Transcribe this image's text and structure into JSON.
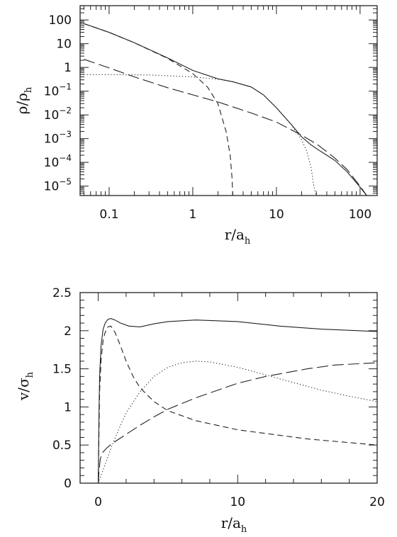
{
  "chart_data": [
    {
      "type": "line",
      "xlabel": "r/a_h",
      "ylabel": "ρ/ρ_h",
      "xlabel_main": "r/a",
      "xlabel_sub": "h",
      "ylabel_main": "ρ/ρ",
      "ylabel_sub": "h",
      "xscale": "log",
      "yscale": "log",
      "xlim": [
        0.045,
        160
      ],
      "ylim": [
        4e-06,
        400
      ],
      "grid": false,
      "x_tick_labels": [
        {
          "value": 0.1,
          "text": "0.1"
        },
        {
          "value": 1,
          "text": "1"
        },
        {
          "value": 10,
          "text": "10"
        },
        {
          "value": 100,
          "text": "100"
        }
      ],
      "y_tick_labels": [
        {
          "value": 100,
          "base": "100",
          "exp": ""
        },
        {
          "value": 10,
          "base": "10",
          "exp": ""
        },
        {
          "value": 1,
          "base": "1",
          "exp": ""
        },
        {
          "value": 0.1,
          "base": "10",
          "exp": "−1"
        },
        {
          "value": 0.01,
          "base": "10",
          "exp": "−2"
        },
        {
          "value": 0.001,
          "base": "10",
          "exp": "−3"
        },
        {
          "value": 0.0001,
          "base": "10",
          "exp": "−4"
        },
        {
          "value": 1e-05,
          "base": "10",
          "exp": "−5"
        }
      ],
      "series": [
        {
          "style": "solid",
          "x": [
            0.05,
            0.1,
            0.2,
            0.5,
            1,
            2,
            3,
            5,
            7,
            10,
            15,
            20,
            25,
            30,
            40,
            50,
            70,
            100,
            120
          ],
          "y": [
            70,
            30,
            11,
            2.5,
            0.75,
            0.33,
            0.25,
            0.15,
            0.07,
            0.02,
            0.004,
            0.0012,
            0.0006,
            0.00038,
            0.0002,
            0.00012,
            4e-05,
            9e-06,
            4e-06
          ]
        },
        {
          "style": "dashed",
          "x": [
            0.05,
            0.1,
            0.2,
            0.5,
            1,
            1.5,
            2,
            2.5,
            2.8,
            2.95,
            3.0
          ],
          "y": [
            70,
            30,
            11,
            2.4,
            0.55,
            0.15,
            0.03,
            0.002,
            0.0002,
            2e-05,
            4e-06
          ]
        },
        {
          "style": "dotted",
          "x": [
            0.05,
            0.1,
            0.3,
            1,
            2,
            3,
            5,
            7,
            10,
            15,
            20,
            23,
            26,
            28,
            29.5,
            30
          ],
          "y": [
            0.5,
            0.5,
            0.48,
            0.4,
            0.32,
            0.25,
            0.15,
            0.07,
            0.02,
            0.004,
            0.0009,
            0.0003,
            6e-05,
            1e-05,
            5e-06,
            4e-06
          ]
        },
        {
          "style": "longdash",
          "x": [
            0.05,
            0.1,
            0.2,
            0.5,
            1,
            2,
            5,
            10,
            20,
            30,
            40,
            50,
            70,
            100,
            120
          ],
          "y": [
            2.2,
            0.95,
            0.4,
            0.14,
            0.07,
            0.035,
            0.012,
            0.005,
            0.0014,
            0.0006,
            0.00028,
            0.00015,
            5e-05,
            1e-05,
            4e-06
          ]
        }
      ]
    },
    {
      "type": "line",
      "xlabel": "r/a_h",
      "ylabel": "v/σ_h",
      "xlabel_main": "r/a",
      "xlabel_sub": "h",
      "ylabel_main": "v/σ",
      "ylabel_sub": "h",
      "xlim": [
        -1.3,
        20
      ],
      "ylim": [
        0,
        2.5
      ],
      "grid": false,
      "x_tick_labels": [
        {
          "value": 0,
          "text": "0"
        },
        {
          "value": 10,
          "text": "10"
        },
        {
          "value": 20,
          "text": "20"
        }
      ],
      "y_tick_labels": [
        {
          "value": 0,
          "text": "0"
        },
        {
          "value": 0.5,
          "text": "0.5"
        },
        {
          "value": 1,
          "text": "1"
        },
        {
          "value": 1.5,
          "text": "1.5"
        },
        {
          "value": 2,
          "text": "2"
        },
        {
          "value": 2.5,
          "text": "2.5"
        }
      ],
      "series": [
        {
          "style": "solid",
          "x": [
            0,
            0.05,
            0.1,
            0.2,
            0.35,
            0.5,
            0.7,
            0.9,
            1.2,
            1.6,
            2.2,
            3,
            4,
            5,
            7,
            10,
            13,
            16,
            20
          ],
          "y": [
            0,
            0.9,
            1.4,
            1.8,
            2.02,
            2.1,
            2.15,
            2.16,
            2.14,
            2.1,
            2.06,
            2.05,
            2.09,
            2.12,
            2.14,
            2.12,
            2.06,
            2.02,
            1.99
          ]
        },
        {
          "style": "dashed",
          "x": [
            0,
            0.1,
            0.2,
            0.35,
            0.5,
            0.7,
            0.9,
            1.2,
            1.6,
            2,
            2.5,
            3,
            4,
            5,
            7,
            10,
            15,
            20
          ],
          "y": [
            0,
            1.2,
            1.6,
            1.88,
            1.98,
            2.05,
            2.06,
            1.98,
            1.8,
            1.6,
            1.4,
            1.25,
            1.07,
            0.95,
            0.82,
            0.7,
            0.58,
            0.5
          ]
        },
        {
          "style": "dotted",
          "x": [
            0,
            0.3,
            0.6,
            1,
            1.5,
            2,
            3,
            4,
            5,
            6,
            7,
            8,
            10,
            12,
            14,
            16,
            18,
            20
          ],
          "y": [
            0,
            0.15,
            0.3,
            0.5,
            0.72,
            0.92,
            1.2,
            1.4,
            1.52,
            1.58,
            1.6,
            1.59,
            1.52,
            1.42,
            1.32,
            1.22,
            1.14,
            1.07
          ]
        },
        {
          "style": "longdash",
          "x": [
            0,
            0.05,
            0.15,
            0.3,
            0.6,
            1,
            2,
            3,
            4,
            5,
            7,
            10,
            12,
            15,
            17,
            20
          ],
          "y": [
            0,
            0.15,
            0.32,
            0.4,
            0.46,
            0.52,
            0.64,
            0.76,
            0.87,
            0.97,
            1.12,
            1.31,
            1.4,
            1.5,
            1.55,
            1.58
          ]
        }
      ]
    }
  ]
}
